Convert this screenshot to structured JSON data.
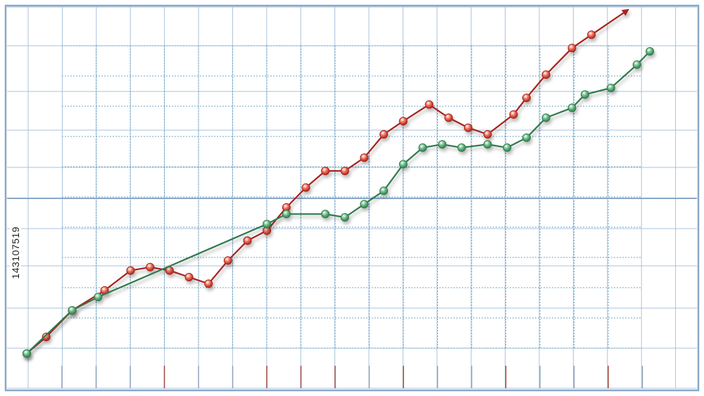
{
  "stock_id": "143107519",
  "colors": {
    "frame": "#8aa8c8",
    "grid_major": "#a9c3dc",
    "grid_minor": "#6fa6c4",
    "series_red": "#a8231d",
    "series_red_fill": "#f0715b",
    "series_green": "#2f7a4c",
    "series_green_fill": "#6fbf8a",
    "tick_red": "#a0483f",
    "tick_blue": "#8fa3bd"
  },
  "chart_data": {
    "type": "line",
    "xlim": [
      0,
      1
    ],
    "ylim": [
      0,
      1
    ],
    "grid": true,
    "axes_labels": false,
    "series": [
      {
        "color_role": "red",
        "end_arrow": true,
        "x": [
          0.0,
          0.03,
          0.07,
          0.12,
          0.16,
          0.19,
          0.22,
          0.25,
          0.28,
          0.31,
          0.34,
          0.37,
          0.4,
          0.43,
          0.46,
          0.49,
          0.52,
          0.55,
          0.58,
          0.62,
          0.65,
          0.68,
          0.71,
          0.75,
          0.77,
          0.8,
          0.84,
          0.87
        ],
        "y": [
          0.02,
          0.07,
          0.15,
          0.21,
          0.27,
          0.28,
          0.27,
          0.25,
          0.23,
          0.3,
          0.36,
          0.39,
          0.46,
          0.52,
          0.57,
          0.57,
          0.61,
          0.68,
          0.72,
          0.77,
          0.73,
          0.7,
          0.68,
          0.74,
          0.79,
          0.86,
          0.94,
          0.98
        ]
      },
      {
        "color_role": "green",
        "end_arrow": false,
        "x": [
          0.0,
          0.07,
          0.11,
          0.37,
          0.4,
          0.46,
          0.49,
          0.52,
          0.55,
          0.58,
          0.61,
          0.64,
          0.67,
          0.71,
          0.74,
          0.77,
          0.8,
          0.84,
          0.86,
          0.9,
          0.94,
          0.96
        ],
        "y": [
          0.02,
          0.15,
          0.19,
          0.41,
          0.44,
          0.44,
          0.43,
          0.47,
          0.51,
          0.59,
          0.64,
          0.65,
          0.64,
          0.65,
          0.64,
          0.67,
          0.73,
          0.76,
          0.8,
          0.82,
          0.89,
          0.93
        ]
      }
    ],
    "bottom_ticks_highlighted": [
      3,
      6,
      7,
      8,
      10,
      13,
      16
    ]
  }
}
